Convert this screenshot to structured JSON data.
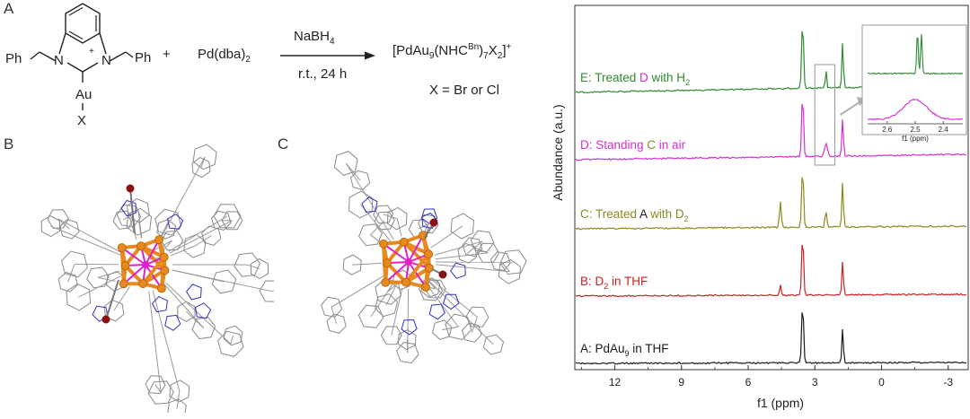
{
  "panels": {
    "a": "A",
    "b": "B",
    "c": "C"
  },
  "scheme": {
    "ligand_left": "Ph",
    "ligand_right": "Ph",
    "n1": "N",
    "n2": "N",
    "metal": "Au",
    "halide": "X",
    "plus": "+",
    "reagent": "Pd(dba)",
    "reagent_sub": "2",
    "above_arrow": "NaBH",
    "above_arrow_sub": "4",
    "below_arrow": "r.t., 24 h",
    "product_main": "[PdAu",
    "product_s1": "9",
    "product_mid": "(NHC",
    "product_sup": "Bn",
    "product_mid2": ")",
    "product_s2": "7",
    "product_x": "X",
    "product_s3": "2",
    "product_end": "]",
    "product_charge": "+",
    "x_def": "X = Br or Cl"
  },
  "nmr": {
    "xlabel": "f1 (ppm)",
    "ylabel": "Abundance (a.u.)",
    "xticks": [
      "12",
      "9",
      "6",
      "3",
      "0",
      "-3"
    ],
    "traces": [
      {
        "id": "A",
        "label_pre": "A: PdAu",
        "label_sub": "9",
        "label_post": " in THF",
        "color": "#1a1a1a"
      },
      {
        "id": "B",
        "label_pre": "B: D",
        "label_sub": "2",
        "label_post": " in THF",
        "color": "#cc2222"
      },
      {
        "id": "C",
        "label_pre": "C: Treated ",
        "label_key": "A",
        "label_mid": " with D",
        "label_sub": "2",
        "color": "#8a8a1e",
        "key_color": "#1a1a1a"
      },
      {
        "id": "D",
        "label_pre": "D: Standing ",
        "label_key": "C",
        "label_mid": " in air",
        "color": "#d62ed6",
        "key_color": "#8a8a1e"
      },
      {
        "id": "E",
        "label_pre": "E: Treated ",
        "label_key": "D",
        "label_mid": " with H",
        "label_sub": "2",
        "color": "#2e8b2e",
        "key_color": "#d62ed6"
      }
    ],
    "inset": {
      "xticks": [
        "2.4",
        "2.5",
        "2.6"
      ],
      "xlabel": "f1 (ppm)"
    }
  },
  "colors": {
    "gold": "#e8891d",
    "pd": "#e020c8",
    "halogen": "#8b1010",
    "n": "#3030c8",
    "frame": "#7a7a7a"
  }
}
